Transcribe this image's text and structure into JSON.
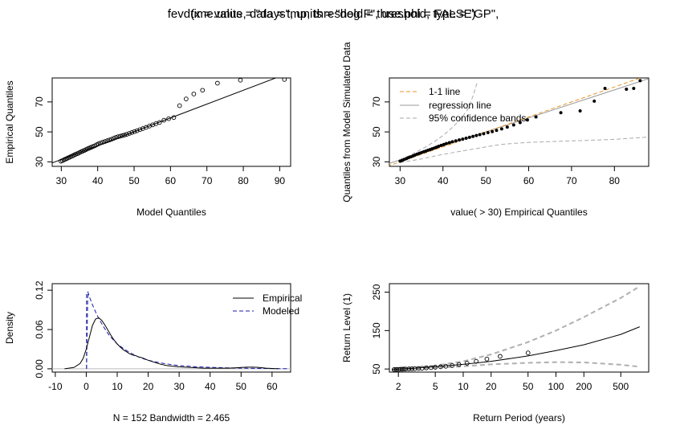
{
  "title_lines": [
    "fevd(x = value, data = tmp, threshold = threshold, type = \"GP\",",
    "time.units = \"days\", units = \"deg F\", use.phi = FALSE)"
  ],
  "chart_data": [
    {
      "type": "scatter",
      "xlabel": "Model Quantiles",
      "ylabel": "Empirical Quantiles",
      "xticks": [
        30,
        40,
        50,
        60,
        70,
        80,
        90
      ],
      "yticks": [
        30,
        50,
        70
      ],
      "xlim": [
        27.5,
        93
      ],
      "ylim": [
        27,
        86
      ],
      "points_x": [
        29.9,
        30.3,
        30.7,
        31.1,
        31.5,
        31.9,
        32.3,
        32.7,
        33.1,
        33.5,
        33.9,
        34.3,
        34.7,
        35.1,
        35.5,
        35.9,
        36.3,
        36.7,
        37.1,
        37.5,
        37.9,
        38.3,
        38.7,
        39.2,
        39.7,
        40.2,
        40.8,
        41.4,
        42.0,
        42.6,
        43.2,
        43.8,
        44.4,
        45.0,
        45.6,
        46.2,
        46.8,
        47.4,
        48.0,
        48.7,
        49.4,
        50.1,
        50.8,
        51.6,
        52.4,
        53.3,
        54.2,
        55.1,
        56.0,
        57.0,
        58.2,
        59.5,
        60.9,
        62.5,
        64.3,
        66.4,
        68.8,
        72.9,
        79.2,
        91.3
      ],
      "points_y": [
        30.4,
        30.8,
        31.3,
        31.8,
        32.2,
        32.7,
        33.1,
        33.6,
        34.0,
        34.5,
        35.0,
        35.4,
        35.8,
        36.3,
        36.8,
        37.2,
        37.6,
        38.1,
        38.6,
        39.0,
        39.4,
        39.8,
        40.2,
        40.7,
        41.4,
        42.0,
        42.6,
        43.1,
        43.6,
        44.1,
        44.6,
        45.1,
        45.7,
        46.3,
        46.8,
        47.1,
        47.5,
        47.9,
        48.4,
        49.0,
        49.6,
        50.2,
        50.8,
        51.5,
        52.2,
        53.0,
        53.9,
        54.7,
        55.5,
        56.3,
        57.8,
        58.8,
        59.6,
        67.5,
        72.0,
        75.3,
        77.8,
        82.5,
        84.5,
        85.0
      ],
      "line_x": [
        27,
        90
      ],
      "line_y": [
        28.8,
        87
      ]
    },
    {
      "type": "scatter",
      "xlabel": "value( > 30) Empirical Quantiles",
      "ylabel": "Quantiles from Model Simulated Data",
      "xticks": [
        30,
        40,
        50,
        60,
        70,
        80
      ],
      "yticks": [
        30,
        50,
        70
      ],
      "xlim": [
        27.5,
        88
      ],
      "ylim": [
        27,
        86
      ],
      "legend_position": "top-left",
      "legend": [
        "1-1 line",
        "regression line",
        "95% confidence bands"
      ],
      "points_x": [
        30.0,
        30.5,
        31.0,
        31.5,
        32.0,
        32.5,
        33.0,
        33.5,
        34.0,
        34.5,
        35.0,
        35.5,
        36.0,
        36.5,
        37.0,
        37.5,
        38.0,
        38.5,
        39.0,
        39.6,
        40.2,
        40.8,
        41.5,
        42.2,
        43.0,
        43.8,
        44.6,
        45.4,
        46.2,
        47.0,
        47.8,
        48.6,
        49.5,
        50.5,
        51.5,
        52.5,
        53.7,
        55.0,
        56.5,
        58.0,
        59.7,
        61.7,
        67.5,
        72.0,
        75.3,
        77.8,
        82.8,
        84.5,
        86.0
      ],
      "points_y": [
        30.5,
        31.0,
        31.6,
        32.2,
        32.8,
        33.4,
        34.0,
        34.6,
        35.2,
        35.7,
        36.2,
        36.7,
        37.2,
        37.7,
        38.2,
        38.7,
        39.2,
        39.8,
        40.4,
        41.0,
        41.6,
        42.2,
        42.8,
        43.4,
        44.0,
        44.6,
        45.2,
        45.8,
        46.4,
        47.0,
        47.6,
        48.2,
        48.8,
        49.5,
        50.2,
        51.0,
        52.0,
        53.2,
        54.6,
        56.2,
        58.0,
        60.0,
        62.8,
        64.0,
        70.5,
        79.0,
        78.5,
        79.0,
        84.2
      ],
      "one_one_x": [
        27,
        88
      ],
      "one_one_y": [
        27,
        88
      ],
      "reg_x": [
        27,
        88
      ],
      "reg_y": [
        28.5,
        85.5
      ],
      "upper_band_x": [
        30,
        32,
        34,
        36,
        38,
        40,
        42,
        44,
        46,
        47,
        48
      ],
      "upper_band_y": [
        31.5,
        34,
        37,
        40,
        43.5,
        47.5,
        52.5,
        58,
        66,
        74,
        83
      ],
      "lower_band_x": [
        30,
        35,
        40,
        45,
        50,
        52,
        55,
        60,
        65,
        70,
        75,
        80,
        85,
        88
      ],
      "lower_band_y": [
        29.5,
        32,
        35,
        37.5,
        40,
        41,
        42,
        43,
        43.5,
        44,
        44.5,
        45,
        46,
        46.5
      ]
    },
    {
      "type": "line",
      "xlabel": "N = 152   Bandwidth = 2.465",
      "ylabel": "Density",
      "xticks": [
        -10,
        0,
        10,
        20,
        30,
        40,
        50,
        60
      ],
      "yticks": [
        0.0,
        0.06,
        0.12
      ],
      "ytick_labels": [
        "0.00",
        "0.06",
        "0.12"
      ],
      "xlim": [
        -11,
        66
      ],
      "ylim": [
        -0.005,
        0.13
      ],
      "legend_position": "top-right",
      "legend": [
        "Empirical",
        "Modeled"
      ],
      "empirical_x": [
        -7,
        -4,
        -2,
        -1,
        0,
        1,
        2,
        3,
        4,
        5,
        6,
        7,
        8,
        9,
        10,
        11,
        12,
        13,
        14,
        15,
        16,
        17,
        18,
        19,
        20,
        22,
        24,
        26,
        28,
        30,
        32,
        34,
        36,
        38,
        40,
        42,
        44,
        46,
        48,
        50,
        52,
        54,
        56,
        58,
        60,
        62
      ],
      "empirical_y": [
        0.0,
        0.002,
        0.008,
        0.016,
        0.03,
        0.048,
        0.066,
        0.076,
        0.078,
        0.074,
        0.067,
        0.059,
        0.051,
        0.044,
        0.038,
        0.033,
        0.029,
        0.026,
        0.023,
        0.021,
        0.02,
        0.018,
        0.017,
        0.015,
        0.013,
        0.01,
        0.007,
        0.005,
        0.004,
        0.003,
        0.0025,
        0.002,
        0.0015,
        0.001,
        0.001,
        0.001,
        0.001,
        0.001,
        0.0015,
        0.002,
        0.0025,
        0.0025,
        0.002,
        0.001,
        0.0005,
        0.0
      ],
      "modeled_x": [
        0.1,
        0.5,
        1,
        2,
        3,
        4,
        5,
        6,
        7,
        8,
        9,
        10,
        12,
        14,
        16,
        18,
        20,
        22,
        24,
        26,
        28,
        30,
        35,
        40,
        45,
        50,
        55,
        60,
        65
      ],
      "modeled_y": [
        0.0,
        0.118,
        0.11,
        0.098,
        0.087,
        0.077,
        0.069,
        0.061,
        0.054,
        0.048,
        0.043,
        0.038,
        0.031,
        0.025,
        0.02,
        0.016,
        0.013,
        0.011,
        0.009,
        0.0075,
        0.006,
        0.005,
        0.0033,
        0.0022,
        0.0015,
        0.001,
        0.0007,
        0.0004,
        0.0002
      ],
      "modeled_spike_x": [
        0.1,
        0.1
      ],
      "modeled_spike_y": [
        0.0,
        0.118
      ]
    },
    {
      "type": "line",
      "xlabel": "Return Period (years)",
      "ylabel": "Return Level (1)",
      "x_scale": "log",
      "xticks": [
        2,
        5,
        10,
        20,
        50,
        100,
        200,
        500
      ],
      "yticks": [
        50,
        150,
        250
      ],
      "xlim": [
        1.6,
        1000
      ],
      "ylim": [
        42,
        272
      ],
      "level_x": [
        1.7,
        2,
        3,
        5,
        10,
        20,
        50,
        100,
        200,
        500,
        800
      ],
      "level_y": [
        48,
        49.5,
        52,
        56,
        62,
        70,
        84,
        98,
        113,
        140,
        160
      ],
      "upper_x": [
        1.7,
        2,
        3,
        5,
        10,
        20,
        50,
        100,
        200,
        500,
        800
      ],
      "upper_y": [
        49,
        51,
        54,
        59,
        70,
        88,
        120,
        150,
        185,
        235,
        265
      ],
      "lower_x": [
        1.7,
        2,
        3,
        5,
        10,
        20,
        50,
        100,
        200,
        500,
        800
      ],
      "lower_y": [
        47,
        48,
        50,
        53,
        57,
        62,
        66,
        68,
        67,
        61,
        56
      ],
      "points_x": [
        1.8,
        1.9,
        2.0,
        2.1,
        2.2,
        2.3,
        2.4,
        2.6,
        2.8,
        3.0,
        3.3,
        3.6,
        4.0,
        4.5,
        5.0,
        5.7,
        6.5,
        7.6,
        9.0,
        11.0,
        13.8,
        18.0,
        25.0,
        50.0
      ],
      "points_y": [
        48.5,
        49,
        49.2,
        49.4,
        49.6,
        49.8,
        50,
        50.3,
        50.6,
        51,
        51.5,
        52,
        52.8,
        53.6,
        54.6,
        55.8,
        57.2,
        59,
        61.5,
        65,
        70,
        76,
        83,
        92
      ]
    }
  ]
}
